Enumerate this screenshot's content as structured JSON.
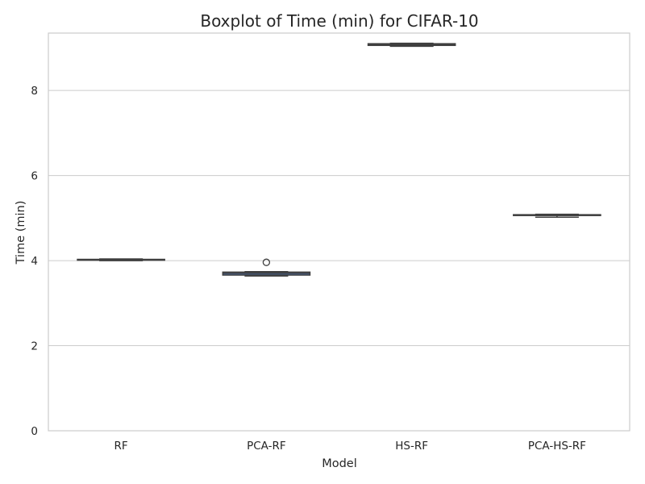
{
  "chart_data": {
    "type": "box",
    "title": "Boxplot of Time (min) for CIFAR-10",
    "xlabel": "Model",
    "ylabel": "Time (min)",
    "ylim": [
      0,
      9.35
    ],
    "yticks": [
      0,
      2,
      4,
      6,
      8
    ],
    "grid": true,
    "categories": [
      "RF",
      "PCA-RF",
      "HS-RF",
      "PCA-HS-RF"
    ],
    "boxes": [
      {
        "category": "RF",
        "whislo": 4.0,
        "q1": 4.01,
        "median": 4.02,
        "q3": 4.03,
        "whishi": 4.04,
        "fliers": []
      },
      {
        "category": "PCA-RF",
        "whislo": 3.64,
        "q1": 3.66,
        "median": 3.7,
        "q3": 3.73,
        "whishi": 3.74,
        "fliers": [
          3.96
        ]
      },
      {
        "category": "HS-RF",
        "whislo": 9.04,
        "q1": 9.06,
        "median": 9.08,
        "q3": 9.1,
        "whishi": 9.11,
        "fliers": []
      },
      {
        "category": "PCA-HS-RF",
        "whislo": 5.02,
        "q1": 5.06,
        "median": 5.07,
        "q3": 5.08,
        "whishi": 5.09,
        "fliers": []
      }
    ],
    "box_color": "#4c72b0",
    "line_color": "#3f3f3f",
    "grid_color": "#cccccc"
  }
}
